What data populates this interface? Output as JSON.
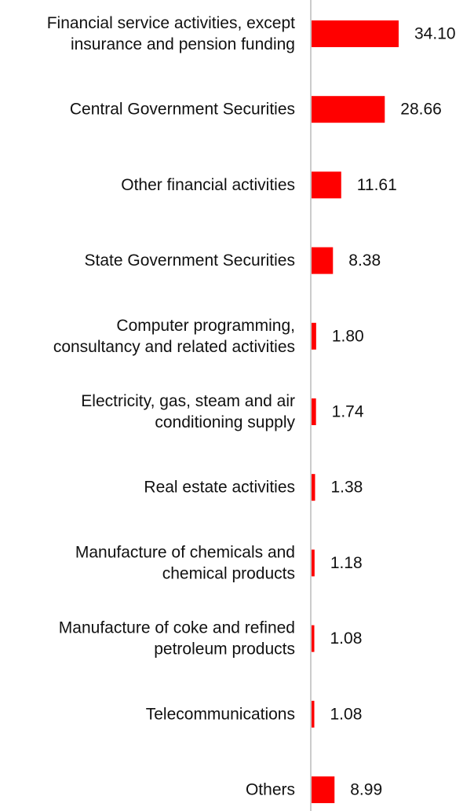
{
  "chart_data": {
    "type": "bar",
    "orientation": "horizontal",
    "categories": [
      "Financial service activities, except insurance and pension funding",
      "Central Government Securities",
      "Other financial activities",
      "State Government Securities",
      "Computer programming, consultancy and related activities",
      "Electricity, gas, steam and air conditioning supply",
      "Real estate activities",
      "Manufacture of chemicals and chemical products",
      "Manufacture of coke and refined petroleum products",
      "Telecommunications",
      "Others"
    ],
    "category_lines": [
      [
        "Financial service activities, except",
        "insurance and pension funding"
      ],
      [
        "Central Government Securities"
      ],
      [
        "Other financial activities"
      ],
      [
        "State Government Securities"
      ],
      [
        "Computer programming,",
        "consultancy and related activities"
      ],
      [
        "Electricity, gas, steam and air",
        "conditioning supply"
      ],
      [
        "Real estate activities"
      ],
      [
        "Manufacture of chemicals and",
        "chemical products"
      ],
      [
        "Manufacture of coke and refined",
        "petroleum products"
      ],
      [
        "Telecommunications"
      ],
      [
        "Others"
      ]
    ],
    "values": [
      34.1,
      28.66,
      11.61,
      8.38,
      1.8,
      1.74,
      1.38,
      1.18,
      1.08,
      1.08,
      8.99
    ],
    "value_labels": [
      "34.10",
      "28.66",
      "11.61",
      "8.38",
      "1.80",
      "1.74",
      "1.38",
      "1.18",
      "1.08",
      "1.08",
      "8.99"
    ],
    "title": "",
    "xlabel": "",
    "ylabel": "",
    "xlim": [
      0,
      34.1
    ],
    "grid": false,
    "legend": "none",
    "bar_color": "#ff0000",
    "axis_color": "#cccccc"
  }
}
